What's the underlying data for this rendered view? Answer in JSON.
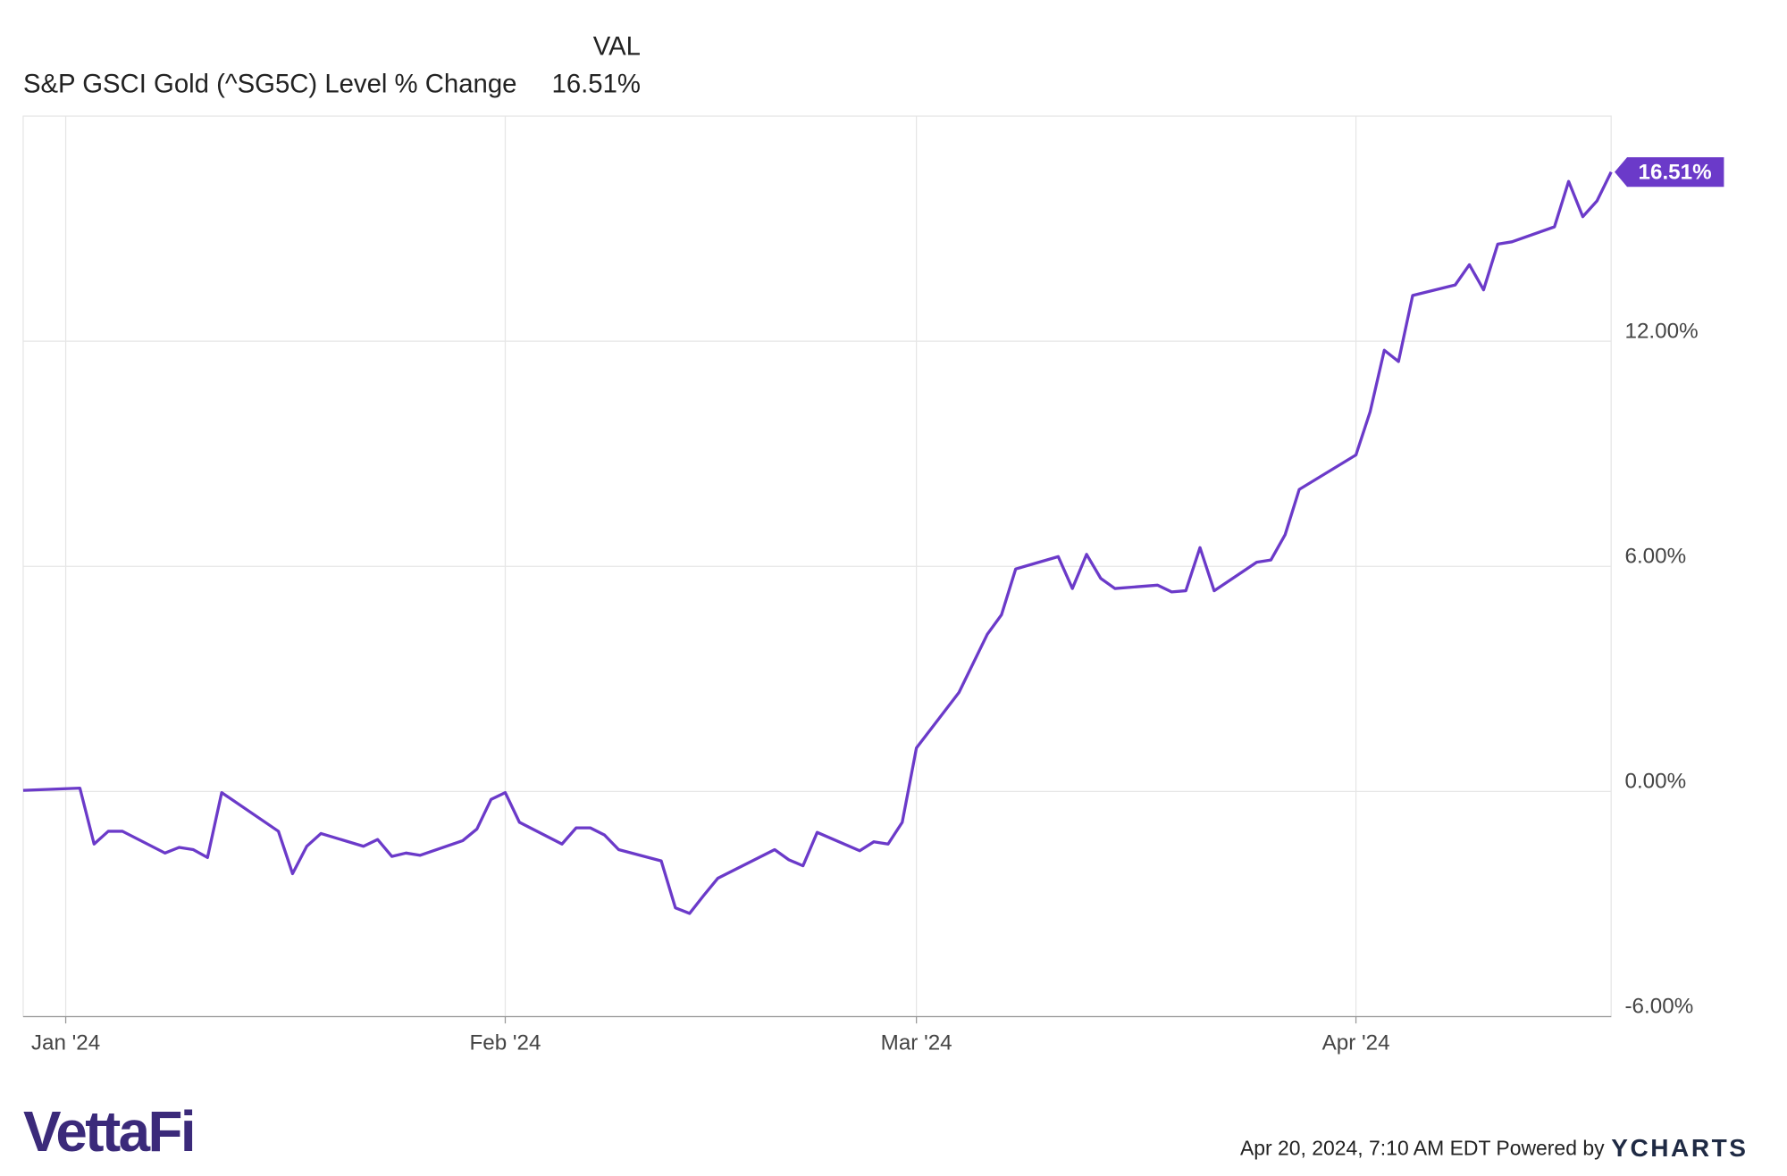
{
  "chart_data": {
    "type": "line",
    "legend_header": "VAL",
    "xlim": [
      -3,
      109
    ],
    "xticks": [
      {
        "value": 0,
        "label": "Jan '24"
      },
      {
        "value": 31,
        "label": "Feb '24"
      },
      {
        "value": 60,
        "label": "Mar '24"
      },
      {
        "value": 91,
        "label": "Apr '24"
      }
    ],
    "ylim": [
      -6,
      18
    ],
    "yticks": [
      {
        "value": -6,
        "label": "-6.00%"
      },
      {
        "value": 0,
        "label": "0.00%"
      },
      {
        "value": 6,
        "label": "6.00%"
      },
      {
        "value": 12,
        "label": "12.00%"
      }
    ],
    "grid": true,
    "series": [
      {
        "name": "S&P GSCI Gold (^SG5C) Level % Change",
        "color": "#6b3ac9",
        "last_label": "16.51%",
        "x": [
          -3,
          1,
          2,
          3,
          4,
          7,
          8,
          9,
          10,
          11,
          15,
          16,
          17,
          18,
          21,
          22,
          23,
          24,
          25,
          28,
          29,
          30,
          31,
          32,
          35,
          36,
          37,
          38,
          39,
          42,
          43,
          44,
          45,
          46,
          50,
          51,
          52,
          53,
          56,
          57,
          58,
          59,
          60,
          63,
          65,
          66,
          67,
          70,
          71,
          72,
          73,
          74,
          77,
          78,
          79,
          80,
          81,
          84,
          85,
          86,
          87,
          91,
          92,
          93,
          94,
          95,
          98,
          99,
          100,
          101,
          102,
          105,
          106,
          107,
          108,
          109
        ],
        "values": [
          0.03,
          0.09,
          -1.4,
          -1.06,
          -1.06,
          -1.64,
          -1.49,
          -1.55,
          -1.76,
          -0.03,
          -1.06,
          -2.19,
          -1.46,
          -1.12,
          -1.46,
          -1.28,
          -1.73,
          -1.64,
          -1.7,
          -1.31,
          -1.0,
          -0.21,
          -0.03,
          -0.82,
          -1.4,
          -0.97,
          -0.97,
          -1.16,
          -1.55,
          -1.85,
          -3.1,
          -3.25,
          -2.77,
          -2.31,
          -1.55,
          -1.82,
          -1.98,
          -1.09,
          -1.58,
          -1.34,
          -1.4,
          -0.82,
          1.16,
          2.64,
          4.19,
          4.71,
          5.93,
          6.26,
          5.41,
          6.32,
          5.68,
          5.41,
          5.5,
          5.32,
          5.35,
          6.5,
          5.35,
          6.11,
          6.17,
          6.84,
          8.05,
          8.97,
          10.12,
          11.76,
          11.46,
          13.22,
          13.5,
          14.04,
          13.37,
          14.59,
          14.65,
          15.05,
          16.26,
          15.32,
          15.74,
          16.51
        ]
      }
    ]
  },
  "footer": {
    "brand": "VettaFi",
    "timestamp": "Apr 20, 2024, 7:10 AM EDT Powered by",
    "provider": "YCHARTS"
  }
}
